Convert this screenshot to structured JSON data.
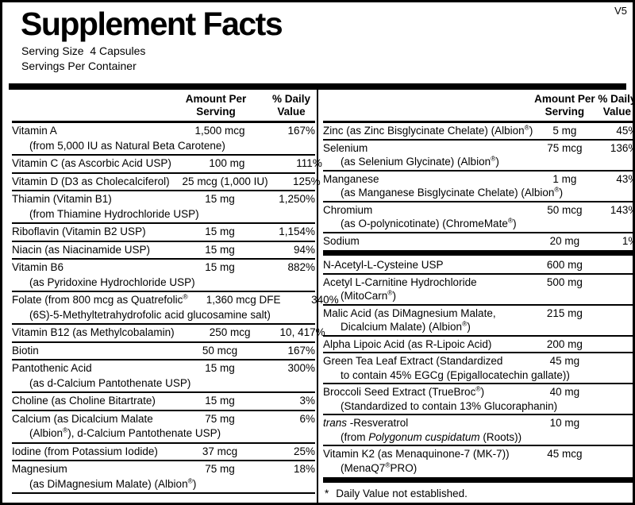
{
  "colors": {
    "ink": "#000000",
    "paper": "#ffffff"
  },
  "version": "V5",
  "title": "Supplement Facts",
  "serving_size": "Serving Size  4 Capsules",
  "servings_per_container": "Servings Per Container",
  "headers": {
    "amount": "Amount Per Serving",
    "dv": "% Daily Value"
  },
  "footnote": {
    "star": "*",
    "text": "Daily Value not established."
  },
  "left_column": {
    "rows": [
      {
        "name": "Vitamin A",
        "sub": "(from 5,000 IU as Natural Beta Carotene)",
        "amount": "1,500 mcg",
        "dv": "167%"
      },
      {
        "name": "Vitamin C (as Ascorbic Acid USP)",
        "amount": "100 mg",
        "dv": "111%"
      },
      {
        "name": "Vitamin D (D3 as Cholecalciferol)",
        "amount": "25 mcg (1,000 IU)",
        "dv": "125%"
      },
      {
        "name": "Thiamin (Vitamin B1)",
        "sub": "(from Thiamine Hydrochloride USP)",
        "amount": "15 mg",
        "dv": "1,250%"
      },
      {
        "name": "Riboflavin (Vitamin B2 USP)",
        "amount": "15 mg",
        "dv": "1,154%"
      },
      {
        "name": "Niacin (as Niacinamide USP)",
        "amount": "15 mg",
        "dv": "94%"
      },
      {
        "name": "Vitamin B6",
        "sub": "(as Pyridoxine Hydrochloride USP)",
        "amount": "15 mg",
        "dv": "882%"
      },
      {
        "name": "Folate (from 800 mcg as Quatrefolic®",
        "sub": "(6S)-5-Methyltetrahydrofolic acid glucosamine salt)",
        "amount": "1,360 mcg DFE",
        "dv": "340%"
      },
      {
        "name": "Vitamin B12 (as Methylcobalamin)",
        "amount": "250 mcg",
        "dv": "10, 417%"
      },
      {
        "name": "Biotin",
        "amount": "50 mcg",
        "dv": "167%"
      },
      {
        "name": "Pantothenic Acid",
        "sub": "(as d-Calcium Pantothenate USP)",
        "amount": "15 mg",
        "dv": "300%"
      },
      {
        "name": "Choline (as Choline Bitartrate)",
        "amount": "15 mg",
        "dv": "3%"
      },
      {
        "name": "Calcium (as Dicalcium Malate",
        "sub": "(Albion®), d-Calcium Pantothenate USP)",
        "amount": "75 mg",
        "dv": "6%"
      },
      {
        "name": "Iodine (from Potassium Iodide)",
        "amount": "37 mcg",
        "dv": "25%"
      },
      {
        "name": "Magnesium",
        "sub": "(as DiMagnesium Malate) (Albion®)",
        "amount": "75 mg",
        "dv": "18%"
      }
    ]
  },
  "right_column": {
    "rows": [
      {
        "name": "Zinc (as Zinc Bisglycinate Chelate) (Albion®)",
        "amount": "5 mg",
        "dv": "45%"
      },
      {
        "name": "Selenium",
        "sub": "(as Selenium Glycinate) (Albion®)",
        "amount": "75 mcg",
        "dv": "136%"
      },
      {
        "name": "Manganese",
        "sub": "(as Manganese Bisglycinate Chelate) (Albion®)",
        "amount": "1 mg",
        "dv": "43%"
      },
      {
        "name": "Chromium",
        "sub": "(as O-polynicotinate) (ChromeMate®)",
        "amount": "50 mcg",
        "dv": "143%"
      },
      {
        "name": "Sodium",
        "amount": "20 mg",
        "dv": "1%"
      },
      {
        "type": "bar"
      },
      {
        "name": "N-Acetyl-L-Cysteine USP",
        "amount": "600 mg",
        "dv": "*"
      },
      {
        "name": "Acetyl L-Carnitine Hydrochloride",
        "sub": "(MitoCarn®)",
        "amount": "500 mg",
        "dv": "*"
      },
      {
        "name": "Malic Acid (as DiMagnesium Malate,",
        "sub": "Dicalcium Malate) (Albion®)",
        "amount": "215 mg",
        "dv": "*"
      },
      {
        "name": "Alpha Lipoic Acid (as R-Lipoic Acid)",
        "amount": "200 mg",
        "dv": "*"
      },
      {
        "name": "Green Tea Leaf Extract (Standardized",
        "sub": "to contain 45% EGCg (Epigallocatechin gallate))",
        "amount": "45 mg",
        "dv": "*"
      },
      {
        "name": "Broccoli Seed Extract (TrueBroc®)",
        "sub": "(Standardized to contain 13% Glucoraphanin)",
        "amount": "40 mg",
        "dv": "*"
      },
      {
        "name_parts": [
          [
            "trans",
            "i"
          ],
          [
            " -Resveratrol",
            ""
          ]
        ],
        "sub_parts": [
          [
            "(from ",
            ""
          ],
          [
            "Polygonum cuspidatum",
            "i"
          ],
          [
            " (Roots))",
            ""
          ]
        ],
        "amount": "10 mg",
        "dv": "*"
      },
      {
        "name": "Vitamin K2 (as Menaquinone-7 (MK-7))",
        "sub": "(MenaQ7®PRO)",
        "amount": "45 mcg",
        "dv": "*"
      },
      {
        "type": "bar"
      },
      {
        "type": "footnote"
      }
    ]
  }
}
